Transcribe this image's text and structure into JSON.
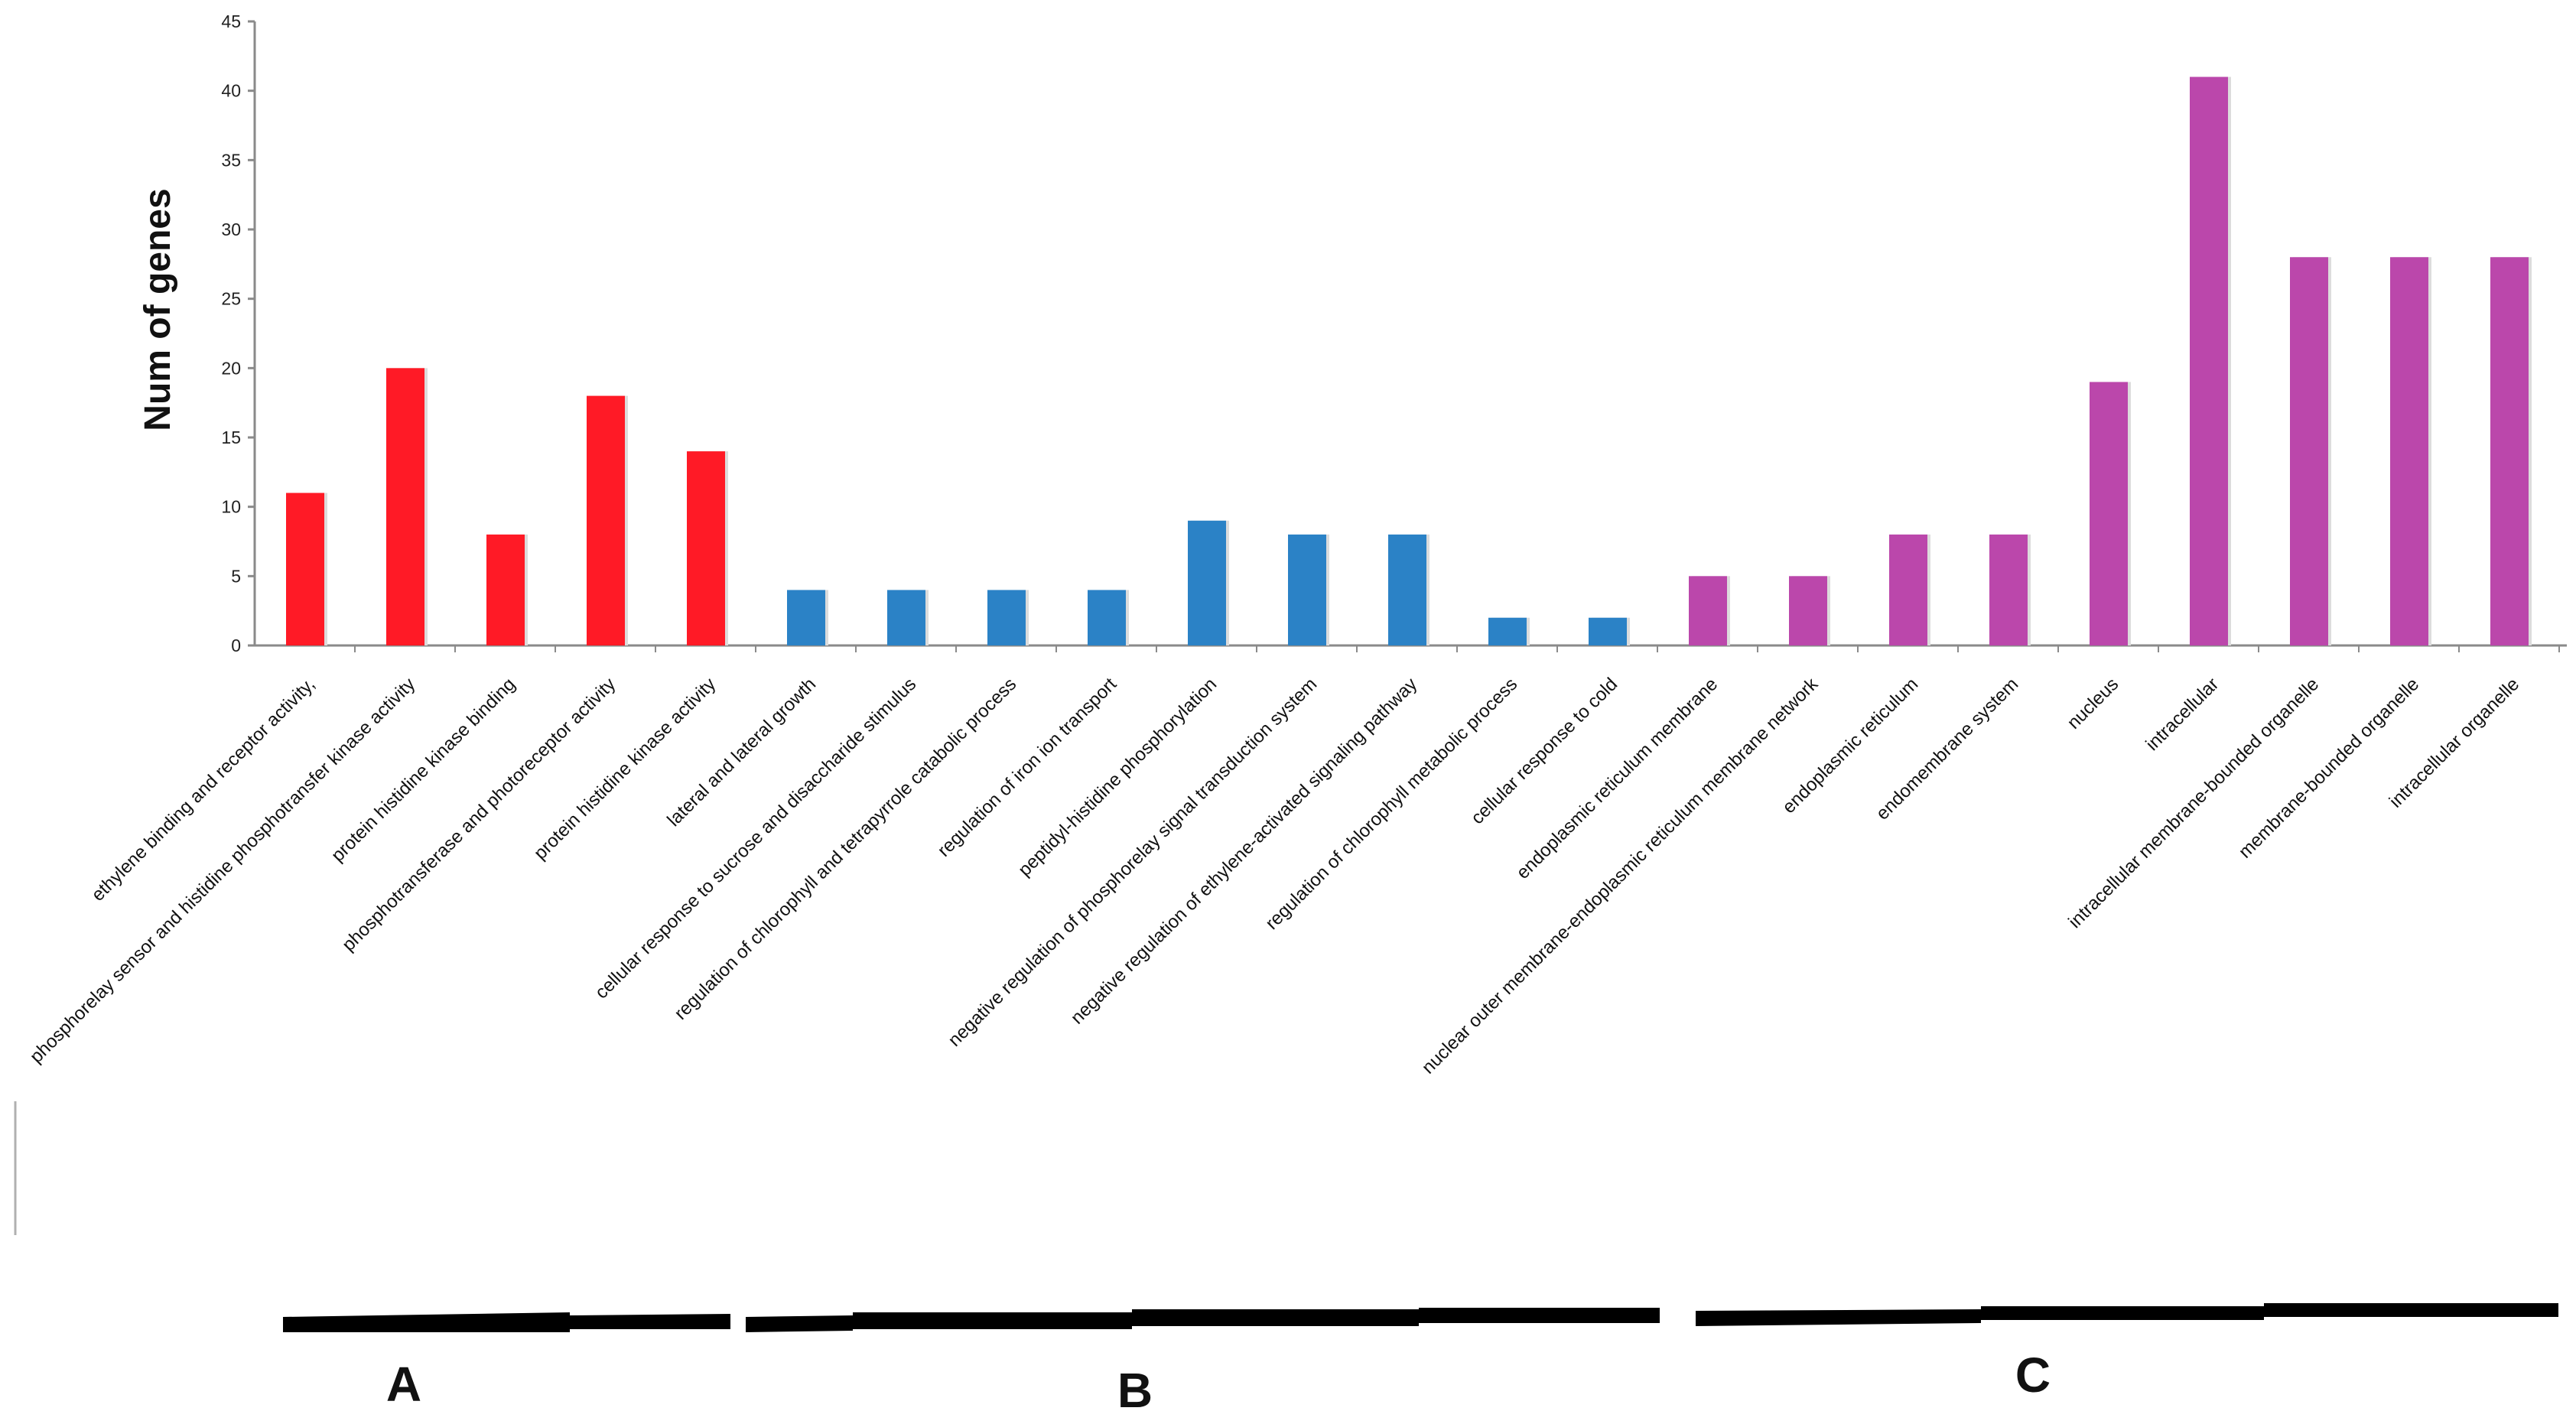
{
  "chart_data": {
    "type": "bar",
    "ylabel": "Num of genes",
    "xlabel": "",
    "ylim": [
      0,
      45
    ],
    "yticks": [
      0,
      5,
      10,
      15,
      20,
      25,
      30,
      35,
      40,
      45
    ],
    "grid": false,
    "colors": {
      "A": "#ff1a26",
      "B": "#2b82c6",
      "C": "#bb47ab"
    },
    "categories": [
      "ethylene binding and receptor activity,",
      "phosphorelay sensor and histidine phosphotransfer kinase activity",
      "protein histidine kinase binding",
      "phosphotransferase and photoreceptor activity",
      "protein histidine kinase activity",
      "lateral and lateral growth",
      "cellular response to sucrose and disaccharide stimulus",
      "regulation of chlorophyll and tetrapyrrole catabolic process",
      "regulation of iron ion transport",
      "peptidyl-histidine phosphorylation",
      "negative regulation of phosphorelay signal transduction system",
      "negative regulation of ethylene-activated signaling pathway",
      "regulation of chlorophyll metabolic process",
      "cellular response to cold",
      "endoplasmic reticulum membrane",
      "nuclear outer membrane-endoplasmic reticulum membrane network",
      "endoplasmic reticulum",
      "endomembrane system",
      "nucleus",
      "intracellular",
      "intracellular membrane-bounded organelle",
      "membrane-bounded organelle",
      "intracellular organelle"
    ],
    "values": [
      11,
      20,
      8,
      18,
      14,
      4,
      4,
      4,
      4,
      9,
      8,
      8,
      2,
      2,
      5,
      5,
      8,
      8,
      19,
      41,
      28,
      28,
      28
    ],
    "groups": [
      "A",
      "A",
      "A",
      "A",
      "A",
      "B",
      "B",
      "B",
      "B",
      "B",
      "B",
      "B",
      "B",
      "B",
      "C",
      "C",
      "C",
      "C",
      "C",
      "C",
      "C",
      "C",
      "C"
    ],
    "group_labels": [
      "A",
      "B",
      "C"
    ]
  }
}
